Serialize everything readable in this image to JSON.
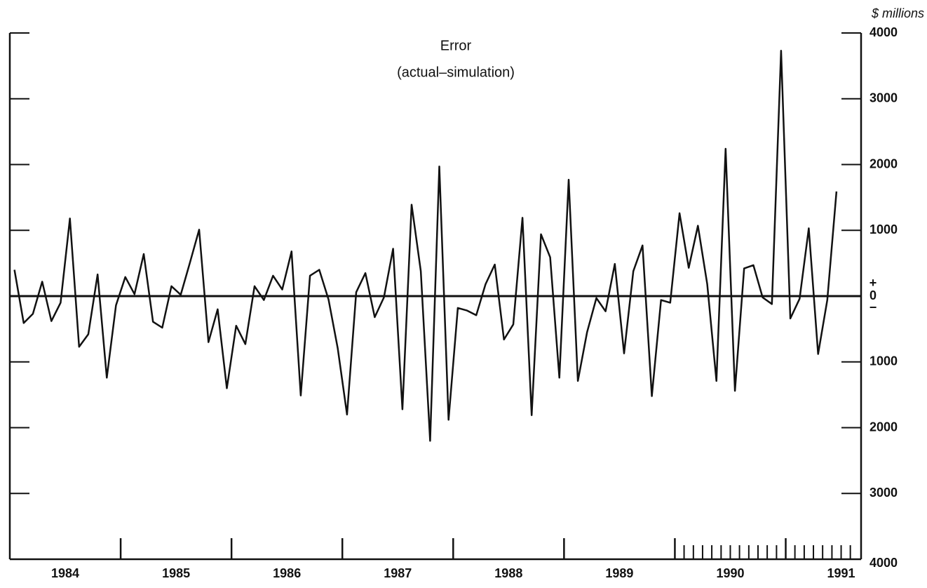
{
  "chart_data": {
    "type": "line",
    "title": "Error",
    "subtitle": "(actual–simulation)",
    "y_axis_label": "$ millions",
    "color": "#111111",
    "x": [
      1984.042,
      1984.125,
      1984.208,
      1984.292,
      1984.375,
      1984.458,
      1984.542,
      1984.625,
      1984.708,
      1984.792,
      1984.875,
      1984.958,
      1985.042,
      1985.125,
      1985.208,
      1985.292,
      1985.375,
      1985.458,
      1985.542,
      1985.625,
      1985.708,
      1985.792,
      1985.875,
      1985.958,
      1986.042,
      1986.125,
      1986.208,
      1986.292,
      1986.375,
      1986.458,
      1986.542,
      1986.625,
      1986.708,
      1986.792,
      1986.875,
      1986.958,
      1987.042,
      1987.125,
      1987.208,
      1987.292,
      1987.375,
      1987.458,
      1987.542,
      1987.625,
      1987.708,
      1987.792,
      1987.875,
      1987.958,
      1988.042,
      1988.125,
      1988.208,
      1988.292,
      1988.375,
      1988.458,
      1988.542,
      1988.625,
      1988.708,
      1988.792,
      1988.875,
      1988.958,
      1989.042,
      1989.125,
      1989.208,
      1989.292,
      1989.375,
      1989.458,
      1989.542,
      1989.625,
      1989.708,
      1989.792,
      1989.875,
      1989.958,
      1990.042,
      1990.125,
      1990.208,
      1990.292,
      1990.375,
      1990.458,
      1990.542,
      1990.625,
      1990.708,
      1990.792,
      1990.875,
      1990.958,
      1991.042,
      1991.125,
      1991.208,
      1991.292,
      1991.375,
      1991.458
    ],
    "values": [
      400,
      -410,
      -270,
      220,
      -380,
      -100,
      1180,
      -770,
      -580,
      330,
      -1240,
      -140,
      290,
      30,
      640,
      -390,
      -480,
      150,
      20,
      510,
      1010,
      -700,
      -200,
      -1400,
      -450,
      -730,
      150,
      -60,
      310,
      100,
      680,
      -1510,
      310,
      400,
      -50,
      -790,
      -1800,
      60,
      350,
      -320,
      -20,
      720,
      -1720,
      1390,
      380,
      -2200,
      1970,
      -1880,
      -180,
      -220,
      -290,
      180,
      480,
      -660,
      -430,
      1190,
      -1810,
      940,
      590,
      -1240,
      1770,
      -1290,
      -550,
      -30,
      -230,
      490,
      -870,
      380,
      770,
      -1520,
      -60,
      -100,
      1260,
      430,
      1070,
      180,
      -1290,
      2240,
      -1440,
      420,
      470,
      -20,
      -120,
      3730,
      -340,
      -40,
      1030,
      -880,
      -60,
      1590
    ],
    "xlim": [
      1984,
      1991.68
    ],
    "xticks": [
      {
        "value": 1984.5,
        "label": "1984"
      },
      {
        "value": 1985.5,
        "label": "1985"
      },
      {
        "value": 1986.5,
        "label": "1986"
      },
      {
        "value": 1987.5,
        "label": "1987"
      },
      {
        "value": 1988.5,
        "label": "1988"
      },
      {
        "value": 1989.5,
        "label": "1989"
      },
      {
        "value": 1990.5,
        "label": "1990"
      },
      {
        "value": 1991.5,
        "label": "1991"
      }
    ],
    "x_tick_marks": [
      1985,
      1986,
      1987,
      1988,
      1989,
      1990,
      1991
    ],
    "x_minor_tick_marks": [
      1990.083,
      1990.167,
      1990.25,
      1990.333,
      1990.417,
      1990.5,
      1990.583,
      1990.667,
      1990.75,
      1990.833,
      1990.917,
      1991.083,
      1991.167,
      1991.25,
      1991.333,
      1991.417,
      1991.5,
      1991.583
    ],
    "ylim": [
      -4000,
      4000
    ],
    "yticks": [
      {
        "value": -4000,
        "label": "4000"
      },
      {
        "value": -3000,
        "label": "3000"
      },
      {
        "value": -2000,
        "label": "2000"
      },
      {
        "value": -1000,
        "label": "1000"
      },
      0,
      1000,
      2000,
      3000,
      4000
    ],
    "above_zero_label": "+",
    "below_zero_label": "−",
    "zero_line": true
  }
}
